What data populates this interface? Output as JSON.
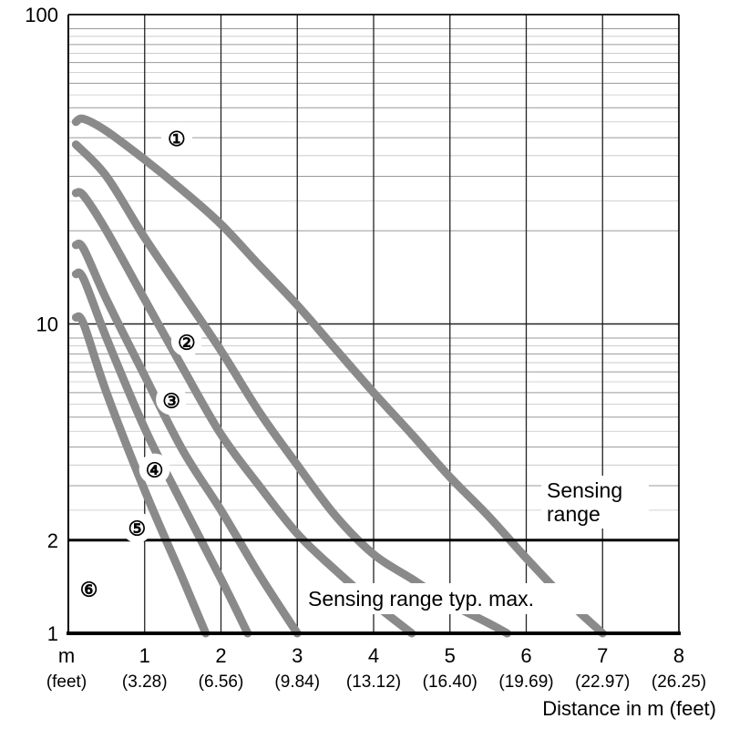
{
  "chart_data": {
    "type": "line",
    "x_unit_label": "m",
    "x_unit_sub": "(feet)",
    "x_ticks": [
      1,
      2,
      3,
      4,
      5,
      6,
      7,
      8
    ],
    "x_tick_subs": [
      "(3.28)",
      "(6.56)",
      "(9.84)",
      "(13.12)",
      "(16.40)",
      "(19.69)",
      "(22.97)",
      "(26.25)"
    ],
    "xlabel": "Distance in m (feet)",
    "ylabel": "",
    "y_scale": "log",
    "y_ticks": [
      1,
      2,
      10,
      100
    ],
    "xlim": [
      0,
      8
    ],
    "ylim": [
      1,
      100
    ],
    "grid": true,
    "threshold": {
      "y": 2,
      "label_line1": "Sensing",
      "label_line2": "range"
    },
    "annotation": "Sensing range typ. max.",
    "series": [
      {
        "name": "①",
        "label_pos": [
          1.42,
          40
        ],
        "x": [
          0.1,
          0.2,
          0.5,
          1.0,
          1.5,
          2.0,
          2.5,
          3.0,
          3.5,
          4.0,
          4.5,
          5.0,
          5.5,
          6.0,
          6.5,
          7.0
        ],
        "y": [
          45,
          46,
          42,
          34,
          27,
          21,
          15.5,
          11.5,
          8.3,
          6.0,
          4.4,
          3.2,
          2.4,
          1.75,
          1.3,
          1.0
        ]
      },
      {
        "name": "②",
        "label_pos": [
          1.55,
          8.8
        ],
        "x": [
          0.1,
          0.5,
          1.0,
          1.5,
          2.0,
          2.5,
          3.0,
          3.5,
          4.0,
          4.5,
          5.0,
          5.5,
          5.75
        ],
        "y": [
          38,
          30,
          19,
          12.5,
          8.2,
          5.2,
          3.5,
          2.4,
          1.8,
          1.5,
          1.25,
          1.08,
          1.0
        ]
      },
      {
        "name": "③",
        "label_pos": [
          1.35,
          5.7
        ],
        "x": [
          0.1,
          0.2,
          0.5,
          1.0,
          1.5,
          2.0,
          2.5,
          3.0,
          3.5,
          4.0,
          4.5
        ],
        "y": [
          26.5,
          26,
          20,
          12,
          7.2,
          4.4,
          3.0,
          2.1,
          1.6,
          1.25,
          1.0
        ]
      },
      {
        "name": "④",
        "label_pos": [
          1.13,
          3.4
        ],
        "x": [
          0.1,
          0.2,
          0.5,
          1.0,
          1.5,
          2.0,
          2.5,
          3.0
        ],
        "y": [
          18,
          17.5,
          12,
          6.8,
          3.9,
          2.5,
          1.55,
          1.0
        ]
      },
      {
        "name": "⑤",
        "label_pos": [
          0.9,
          2.2
        ],
        "x": [
          0.1,
          0.2,
          0.5,
          1.0,
          1.5,
          2.0,
          2.35
        ],
        "y": [
          14.5,
          14,
          9,
          4.6,
          2.6,
          1.5,
          1.0
        ]
      },
      {
        "name": "⑥",
        "label_pos": [
          0.27,
          1.4
        ],
        "x": [
          0.1,
          0.2,
          0.5,
          1.0,
          1.5,
          1.8
        ],
        "y": [
          10.5,
          10,
          6,
          2.9,
          1.5,
          1.0
        ]
      }
    ]
  }
}
